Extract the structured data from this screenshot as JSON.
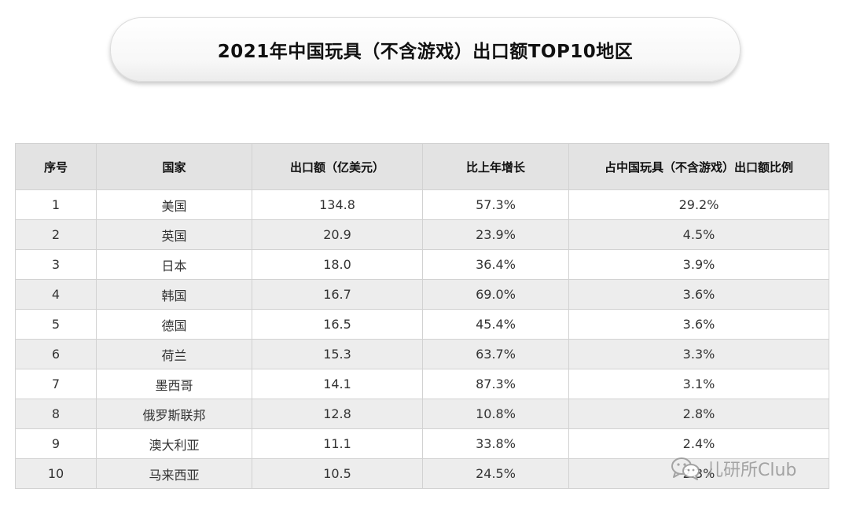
{
  "title": "2021年中国玩具（不含游戏）出口额TOP10地区",
  "table": {
    "headers": [
      "序号",
      "国家",
      "出口额（亿美元）",
      "比上年增长",
      "占中国玩具（不含游戏）出口额比例"
    ],
    "rows": [
      [
        "1",
        "美国",
        "134.8",
        "57.3%",
        "29.2%"
      ],
      [
        "2",
        "英国",
        "20.9",
        "23.9%",
        "4.5%"
      ],
      [
        "3",
        "日本",
        "18.0",
        "36.4%",
        "3.9%"
      ],
      [
        "4",
        "韩国",
        "16.7",
        "69.0%",
        "3.6%"
      ],
      [
        "5",
        "德国",
        "16.5",
        "45.4%",
        "3.6%"
      ],
      [
        "6",
        "荷兰",
        "15.3",
        "63.7%",
        "3.3%"
      ],
      [
        "7",
        "墨西哥",
        "14.1",
        "87.3%",
        "3.1%"
      ],
      [
        "8",
        "俄罗斯联邦",
        "12.8",
        "10.8%",
        "2.8%"
      ],
      [
        "9",
        "澳大利亚",
        "11.1",
        "33.8%",
        "2.4%"
      ],
      [
        "10",
        "马来西亚",
        "10.5",
        "24.5%",
        "2.3%"
      ]
    ]
  },
  "watermark": {
    "icon": "wechat-icon",
    "text": "儿研所Club"
  }
}
